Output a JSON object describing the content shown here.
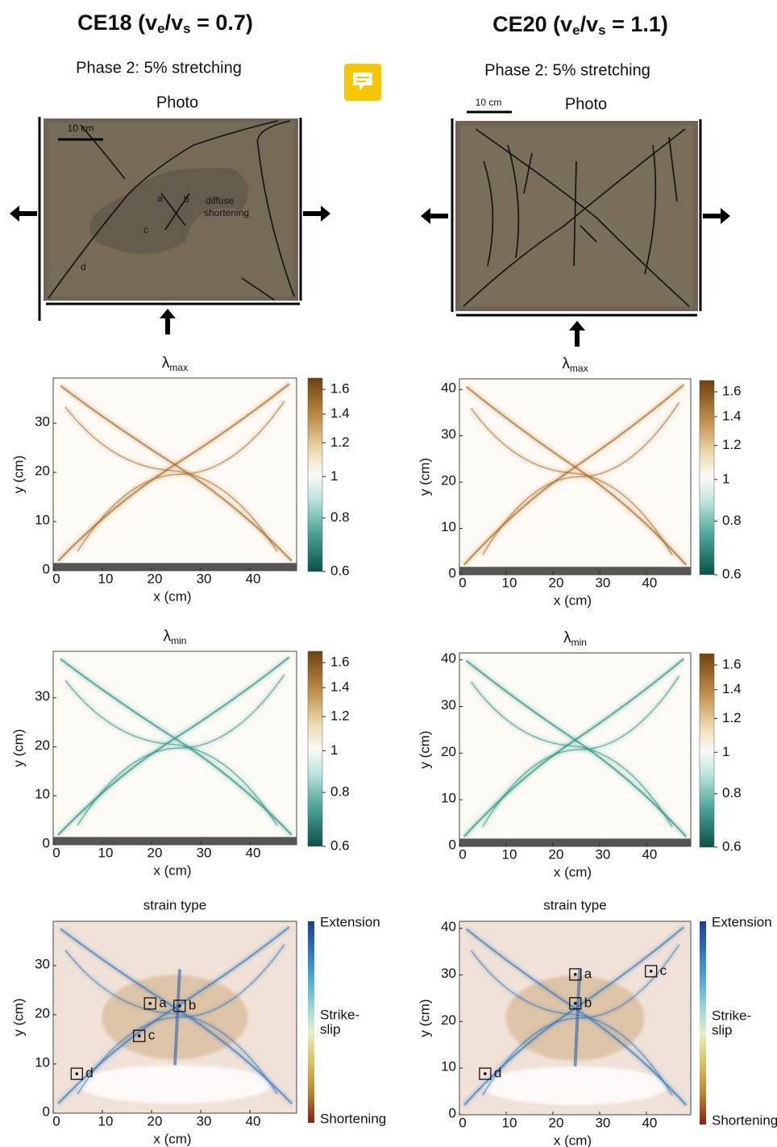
{
  "columns": [
    {
      "title": [
        "CE18 (v",
        "e",
        "/v",
        "s",
        " = 0.7)"
      ],
      "subtitle": "Phase 2: 5% stretching",
      "photo": {
        "label": "Photo",
        "scale_bar": "10 cm",
        "points": [
          "a",
          "b",
          "c",
          "d"
        ],
        "note": [
          "diffuse",
          "shortening"
        ]
      }
    },
    {
      "title": [
        "CE20 (v",
        "e",
        "/v",
        "s",
        " = 1.1)"
      ],
      "subtitle": "Phase 2: 5% stretching",
      "photo": {
        "label": "Photo",
        "scale_bar": "10 cm"
      }
    }
  ],
  "chart_data": [
    {
      "type": "heatmap",
      "title": [
        "λ",
        "max"
      ],
      "xlabel": "x (cm)",
      "ylabel": "y (cm)",
      "xlim": [
        0,
        49.5
      ],
      "xticks": [
        0,
        10,
        20,
        30,
        40
      ],
      "ylim": [
        0,
        39.2
      ],
      "yticks": [
        0,
        10,
        20,
        30
      ],
      "colorbar": {
        "scale": "log",
        "lim": [
          0.6,
          1.7
        ],
        "ticks": [
          0.6,
          0.8,
          1,
          1.2,
          1.4,
          1.6
        ]
      }
    },
    {
      "type": "heatmap",
      "title": [
        "λ",
        "max"
      ],
      "xlabel": "x (cm)",
      "ylabel": "y (cm)",
      "xlim": [
        0,
        49.5
      ],
      "xticks": [
        0,
        10,
        20,
        30,
        40
      ],
      "ylim": [
        0,
        42.3
      ],
      "yticks": [
        0,
        10,
        20,
        30,
        40
      ],
      "colorbar": {
        "scale": "log",
        "lim": [
          0.6,
          1.7
        ],
        "ticks": [
          0.6,
          0.8,
          1,
          1.2,
          1.4,
          1.6
        ]
      }
    },
    {
      "type": "heatmap",
      "title": [
        "λ",
        "min"
      ],
      "xlabel": "x (cm)",
      "ylabel": "y (cm)",
      "xlim": [
        0,
        49.5
      ],
      "xticks": [
        0,
        10,
        20,
        30,
        40
      ],
      "ylim": [
        0,
        39.5
      ],
      "yticks": [
        0,
        10,
        20,
        30
      ],
      "colorbar": {
        "scale": "log",
        "lim": [
          0.6,
          1.7
        ],
        "ticks": [
          0.6,
          0.8,
          1,
          1.2,
          1.4,
          1.6
        ]
      }
    },
    {
      "type": "heatmap",
      "title": [
        "λ",
        "min"
      ],
      "xlabel": "x (cm)",
      "ylabel": "y (cm)",
      "xlim": [
        0,
        49.5
      ],
      "xticks": [
        0,
        10,
        20,
        30,
        40
      ],
      "ylim": [
        0,
        41.5
      ],
      "yticks": [
        0,
        10,
        20,
        30,
        40
      ],
      "colorbar": {
        "scale": "log",
        "lim": [
          0.6,
          1.7
        ],
        "ticks": [
          0.6,
          0.8,
          1,
          1.2,
          1.4,
          1.6
        ]
      }
    },
    {
      "type": "heatmap",
      "title": "strain type",
      "xlabel": "x (cm)",
      "ylabel": "y (cm)",
      "xlim": [
        0,
        49.5
      ],
      "xticks": [
        0,
        10,
        20,
        30,
        40
      ],
      "ylim": [
        0,
        39
      ],
      "yticks": [
        0,
        10,
        20,
        30
      ],
      "colorbar": {
        "labels": [
          "Extension",
          "Strike-",
          "slip",
          "Shortening"
        ]
      },
      "markers": [
        {
          "label": "a",
          "x": 19.7,
          "y": 22.3
        },
        {
          "label": "b",
          "x": 25.7,
          "y": 21.8
        },
        {
          "label": "c",
          "x": 17.5,
          "y": 15.7
        },
        {
          "label": "d",
          "x": 4.8,
          "y": 8.0
        }
      ]
    },
    {
      "type": "heatmap",
      "title": "strain type",
      "xlabel": "x (cm)",
      "ylabel": "y (cm)",
      "xlim": [
        0,
        49.5
      ],
      "xticks": [
        0,
        10,
        20,
        30,
        40
      ],
      "ylim": [
        0,
        41.5
      ],
      "yticks": [
        0,
        10,
        20,
        30,
        40
      ],
      "colorbar": {
        "labels": [
          "Extension",
          "Strike-",
          "slip",
          "Shortening"
        ]
      },
      "markers": [
        {
          "label": "a",
          "x": 24.8,
          "y": 30.1
        },
        {
          "label": "b",
          "x": 24.8,
          "y": 23.9
        },
        {
          "label": "c",
          "x": 41.0,
          "y": 30.8
        },
        {
          "label": "d",
          "x": 5.5,
          "y": 8.8
        }
      ]
    }
  ]
}
